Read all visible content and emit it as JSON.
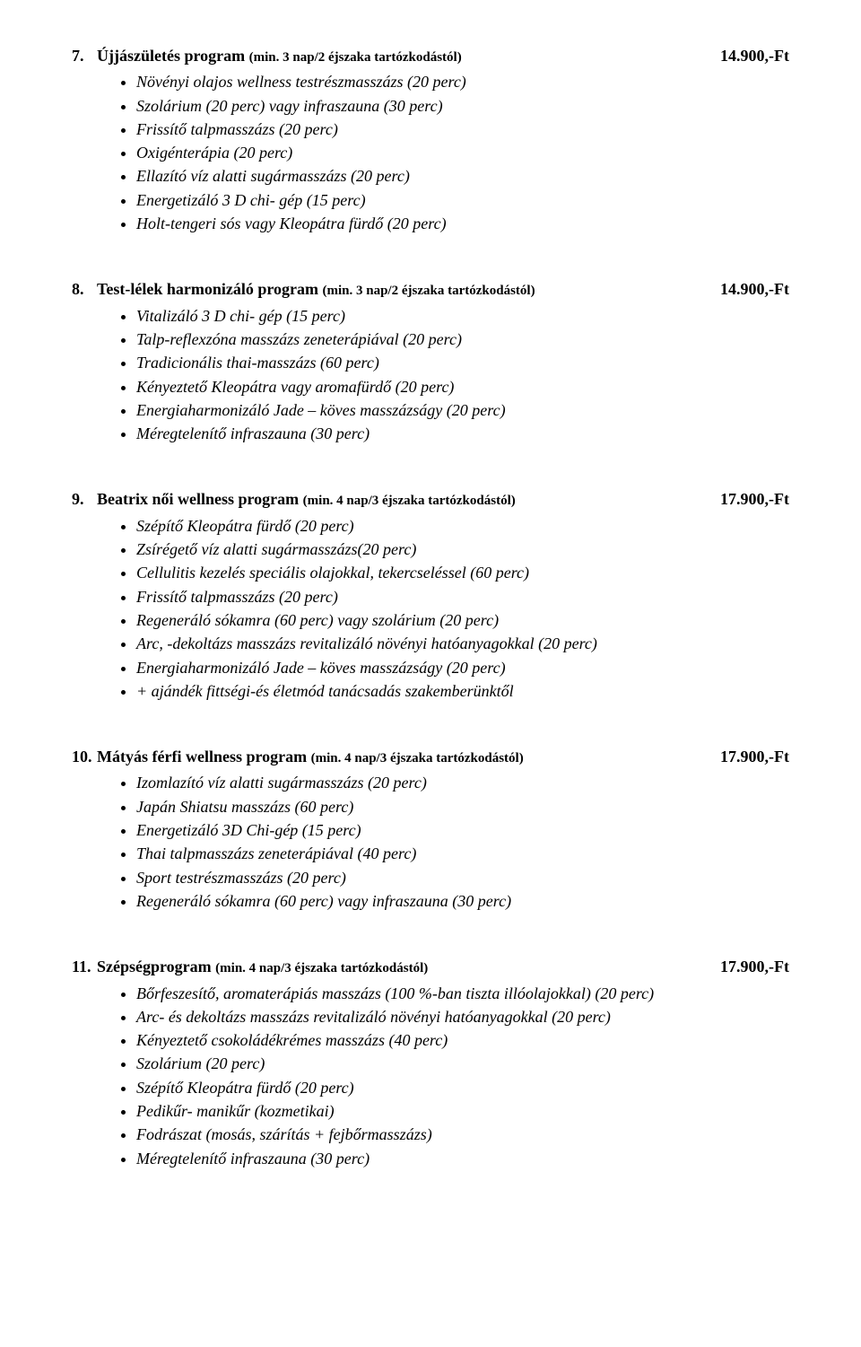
{
  "sections": [
    {
      "number": "7.",
      "title": "Újjászületés program",
      "sub": "(min. 3 nap/2 éjszaka tartózkodástól)",
      "price": "14.900,-Ft",
      "items": [
        "Növényi olajos wellness testrészmasszázs (20 perc)",
        "Szolárium (20 perc) vagy infraszauna (30 perc)",
        "Frissítő talpmasszázs (20 perc)",
        "Oxigénterápia (20 perc)",
        "Ellazító víz alatti sugármasszázs (20 perc)",
        "Energetizáló 3 D chi- gép (15 perc)",
        "Holt-tengeri sós vagy Kleopátra fürdő (20 perc)"
      ]
    },
    {
      "number": "8.",
      "title": "Test-lélek harmonizáló program",
      "sub": "(min. 3 nap/2 éjszaka tartózkodástól)",
      "price": "14.900,-Ft",
      "items": [
        "Vitalizáló 3 D chi- gép (15 perc)",
        "Talp-reflexzóna masszázs zeneterápiával (20 perc)",
        "Tradicionális thai-masszázs (60 perc)",
        "Kényeztető Kleopátra vagy aromafürdő (20 perc)",
        "Energiaharmonizáló Jade – köves masszázságy (20 perc)",
        "Méregtelenítő infraszauna (30 perc)"
      ]
    },
    {
      "number": "9.",
      "title": "Beatrix női wellness program",
      "sub": "(min. 4 nap/3 éjszaka tartózkodástól)",
      "price": "17.900,-Ft",
      "items": [
        "Szépítő Kleopátra fürdő (20 perc)",
        "Zsírégető víz alatti sugármasszázs(20 perc)",
        "Cellulitis kezelés speciális olajokkal, tekercseléssel (60 perc)",
        "Frissítő talpmasszázs (20 perc)",
        "Regeneráló sókamra (60 perc) vagy szolárium (20 perc)",
        "Arc, -dekoltázs masszázs revitalizáló növényi hatóanyagokkal (20 perc)",
        "Energiaharmonizáló Jade – köves masszázságy (20 perc)",
        "+ ajándék fittségi-és életmód tanácsadás szakemberünktől"
      ]
    },
    {
      "number": "10.",
      "title": "Mátyás férfi wellness program",
      "sub": "(min. 4 nap/3 éjszaka tartózkodástól)",
      "price": "17.900,-Ft",
      "items": [
        "Izomlazító víz alatti sugármasszázs (20 perc)",
        "Japán Shiatsu masszázs (60 perc)",
        "Energetizáló 3D Chi-gép (15 perc)",
        "Thai talpmasszázs zeneterápiával (40 perc)",
        "Sport testrészmasszázs (20 perc)",
        "Regeneráló sókamra (60 perc) vagy infraszauna (30 perc)"
      ]
    },
    {
      "number": "11.",
      "title": "Szépségprogram",
      "sub": "(min. 4 nap/3 éjszaka tartózkodástól)",
      "price": "17.900,-Ft",
      "items": [
        "Bőrfeszesítő, aromaterápiás masszázs (100 %-ban tiszta illóolajokkal) (20 perc)",
        "Arc- és dekoltázs masszázs revitalizáló növényi hatóanyagokkal (20 perc)",
        "Kényeztető csokoládékrémes masszázs (40 perc)",
        "Szolárium (20 perc)",
        "Szépítő Kleopátra fürdő (20 perc)",
        "Pedikűr- manikűr (kozmetikai)",
        "Fodrászat (mosás, szárítás + fejbőrmasszázs)",
        "Méregtelenítő infraszauna (30 perc)"
      ]
    }
  ]
}
